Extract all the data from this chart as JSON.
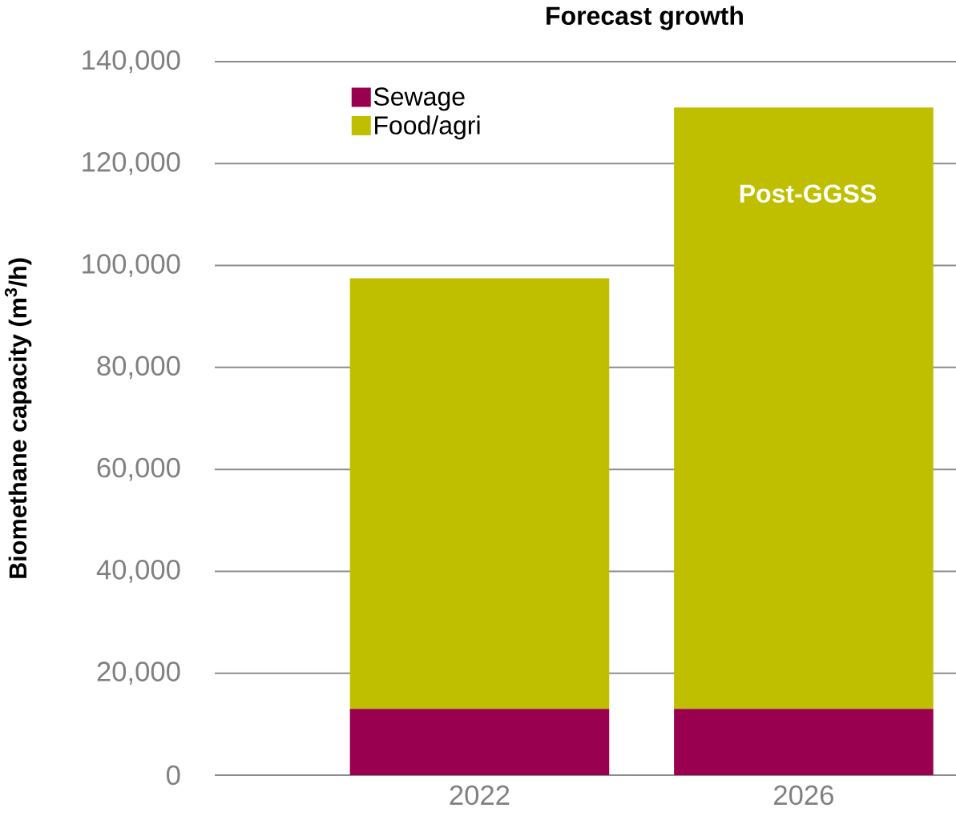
{
  "chart_data": {
    "type": "bar",
    "title": "Forecast growth",
    "ylabel": "Biomethane capacity (m$^{3}$/h)",
    "categories": [
      "2022",
      "2026"
    ],
    "series": [
      {
        "name": "Sewage",
        "color": "#990050",
        "values": [
          13000,
          13000
        ]
      },
      {
        "name": "Food/agri",
        "color": "#bfbf00",
        "values": [
          84500,
          118000
        ]
      }
    ],
    "stacked": true,
    "ylim": [
      0,
      140000
    ],
    "yticks": [
      {
        "value": 0,
        "label": "0"
      },
      {
        "value": 20000,
        "label": "20,000"
      },
      {
        "value": 40000,
        "label": "40,000"
      },
      {
        "value": 60000,
        "label": "60,000"
      },
      {
        "value": 80000,
        "label": "80,000"
      },
      {
        "value": 100000,
        "label": "100,000"
      },
      {
        "value": 120000,
        "label": "120,000"
      },
      {
        "value": 140000,
        "label": "140,000"
      }
    ],
    "grid": "y",
    "legend": "top left",
    "annotations": [
      "Post-GGSS"
    ]
  }
}
